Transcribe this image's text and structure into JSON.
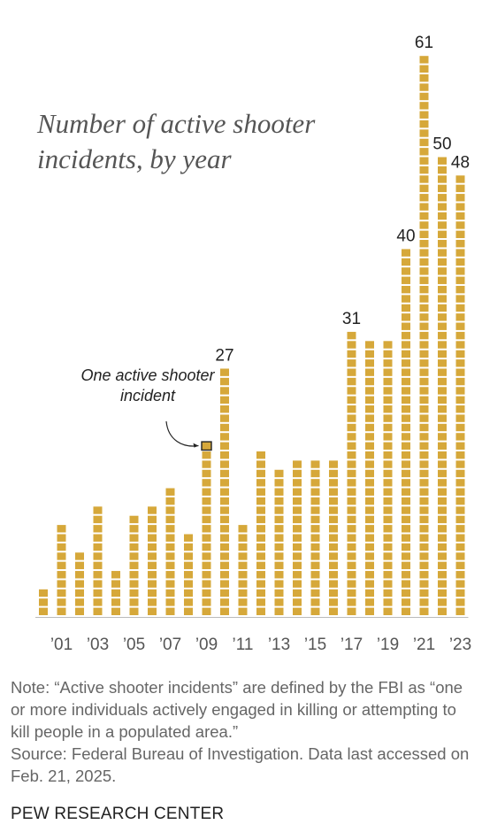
{
  "title": "Number of active shooter incidents, by year",
  "annotation": "One active shooter incident",
  "note": "Note: “Active shooter incidents” are defined by the FBI as “one or more individuals actively engaged in killing or attempting to kill people in a populated area.”",
  "source": "Source: Federal Bureau of Investigation. Data last accessed on Feb. 21, 2025.",
  "brand": "PEW RESEARCH CENTER",
  "colors": {
    "bar": "#D6A83A",
    "bar_gap": "#FFFFFF",
    "axis": "#BBBBBB",
    "label": "#222222",
    "tick": "#555555"
  },
  "chart_data": {
    "type": "bar",
    "title": "Number of active shooter incidents, by year",
    "xlabel": "",
    "ylabel": "",
    "categories": [
      "2000",
      "2001",
      "2002",
      "2003",
      "2004",
      "2005",
      "2006",
      "2007",
      "2008",
      "2009",
      "2010",
      "2011",
      "2012",
      "2013",
      "2014",
      "2015",
      "2016",
      "2017",
      "2018",
      "2019",
      "2020",
      "2021",
      "2022",
      "2023"
    ],
    "tick_labels": [
      "",
      "’01",
      "",
      "’03",
      "",
      "’05",
      "",
      "’07",
      "",
      "’09",
      "",
      "’11",
      "",
      "’13",
      "",
      "’15",
      "",
      "’17",
      "",
      "’19",
      "",
      "’21",
      "",
      "’23"
    ],
    "values": [
      3,
      10,
      7,
      12,
      5,
      11,
      12,
      14,
      9,
      19,
      27,
      10,
      18,
      16,
      17,
      17,
      17,
      31,
      30,
      30,
      40,
      61,
      50,
      48
    ],
    "labeled_values": [
      27,
      31,
      40,
      61,
      50,
      48
    ],
    "unit_marker": "One active shooter incident",
    "ylim": [
      0,
      61
    ],
    "grid": false,
    "legend": "none"
  }
}
